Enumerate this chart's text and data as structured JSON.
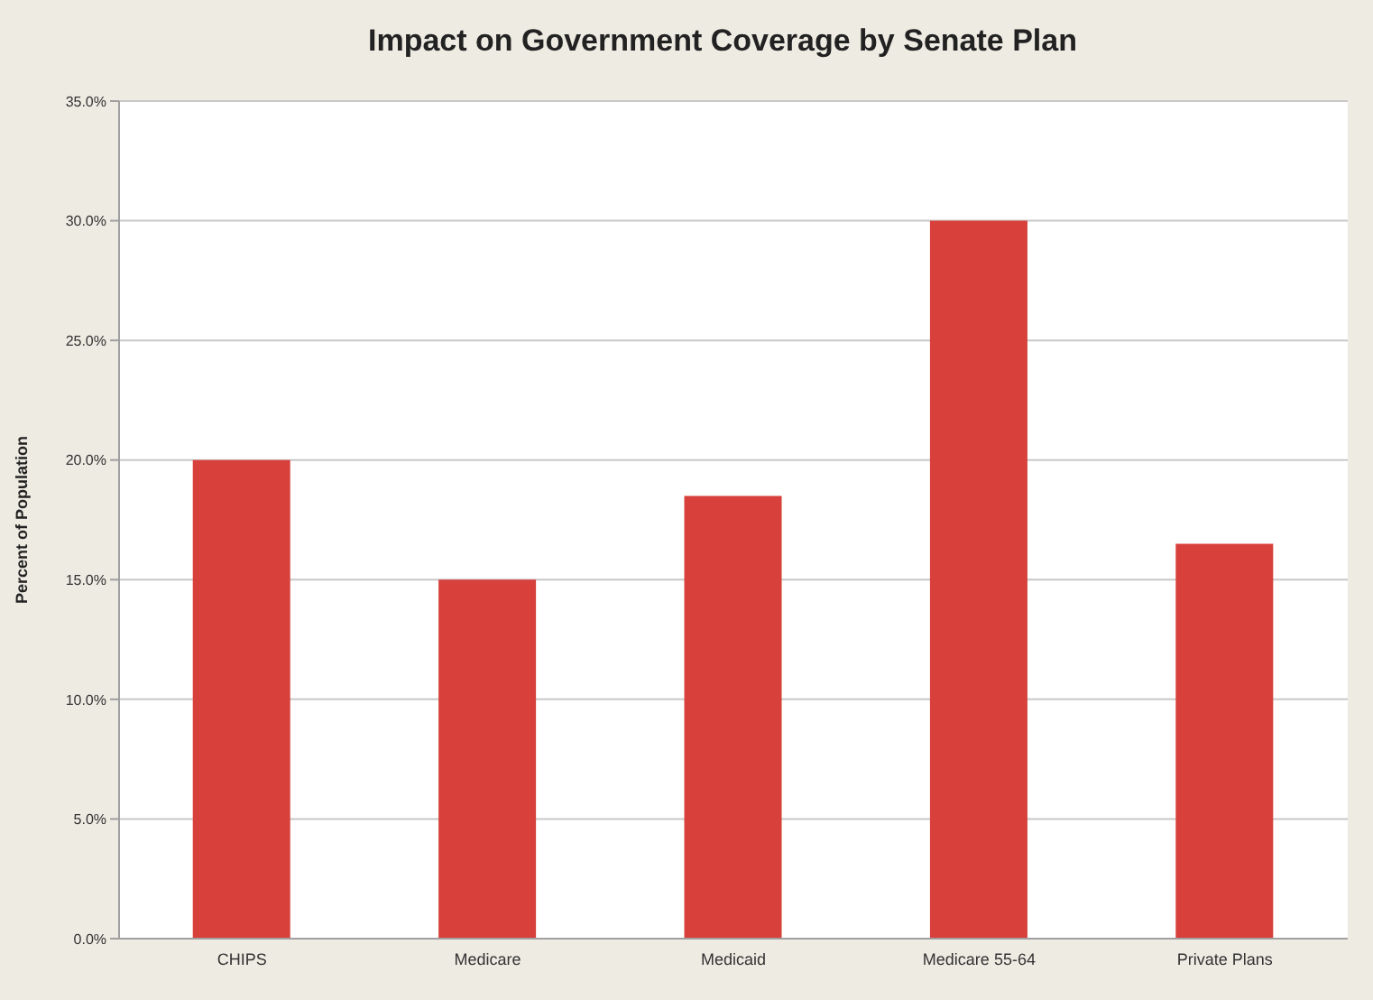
{
  "chart_data": {
    "type": "bar",
    "title": "Impact on Government Coverage by Senate Plan",
    "ylabel": "Percent of Population",
    "categories": [
      "CHIPS",
      "Medicare",
      "Medicaid",
      "Medicare 55-64",
      "Private Plans"
    ],
    "values": [
      20.0,
      15.0,
      18.5,
      30.0,
      16.5
    ],
    "color": "#d7403b",
    "ylim": [
      0,
      35
    ],
    "yticks": [
      {
        "value": 0,
        "label": "0.0%"
      },
      {
        "value": 5,
        "label": "5.0%"
      },
      {
        "value": 10,
        "label": "10.0%"
      },
      {
        "value": 15,
        "label": "15.0%"
      },
      {
        "value": 20,
        "label": "20.0%"
      },
      {
        "value": 25,
        "label": "25.0%"
      },
      {
        "value": 30,
        "label": "30.0%"
      },
      {
        "value": 35,
        "label": "35.0%"
      }
    ],
    "grid": "y"
  }
}
